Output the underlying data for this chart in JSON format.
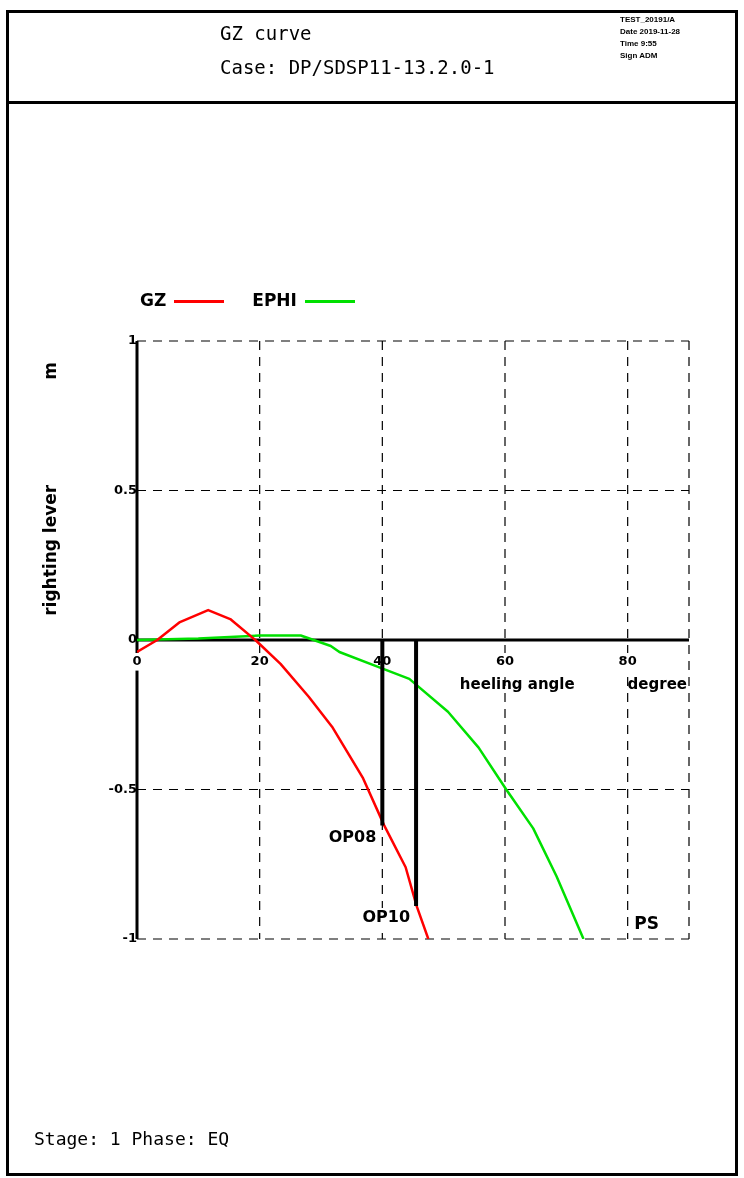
{
  "chart_data": {
    "type": "line",
    "title": "GZ curve",
    "subtitle": "Case: DP/SDSP11-13.2.0-1",
    "xlabel": "heeling angle",
    "ylabel": "righting lever",
    "x": [
      0,
      3.3,
      7,
      11.6,
      15.2,
      19.3,
      23.4,
      28,
      31.8,
      36.8,
      40.3,
      43.8,
      45.6,
      47.5
    ],
    "series": [
      {
        "name": "GZ",
        "color": "#ff0000",
        "values": [
          -0.04,
          0,
          0.06,
          0.1,
          0.07,
          0,
          -0.08,
          -0.19,
          -0.29,
          -0.46,
          -0.62,
          -0.76,
          -0.89,
          -1.0
        ]
      },
      {
        "name": "EPHI",
        "color": "#00e000",
        "x": [
          0,
          10,
          20,
          26.7,
          31.6,
          33,
          39.3,
          44.4,
          50.7,
          55.7,
          60.2,
          64.6,
          68.4,
          72.8
        ],
        "values": [
          0,
          0.005,
          0.015,
          0.015,
          -0.02,
          -0.04,
          -0.09,
          -0.13,
          -0.24,
          -0.36,
          -0.5,
          -0.63,
          -0.79,
          -1.0
        ]
      }
    ],
    "xlim": [
      0,
      90
    ],
    "xticks": [
      0,
      20,
      40,
      60,
      80
    ],
    "ylim": [
      -1,
      1
    ],
    "yticks": [
      -1,
      -0.5,
      0,
      0.5,
      1
    ],
    "grid": true,
    "legend": "top left",
    "marker": "none",
    "line_style": "solid",
    "annotations": [
      {
        "text": "OP08",
        "x": 40,
        "y": -0.62
      },
      {
        "text": "OP10",
        "x": 45.5,
        "y": -0.89
      },
      "m",
      "degree",
      "PS",
      "Stage: 1   Phase: EQ",
      "TEST_20191/A",
      "Date 2019-11-28",
      "Time 9:55",
      "Sign ADM"
    ]
  }
}
